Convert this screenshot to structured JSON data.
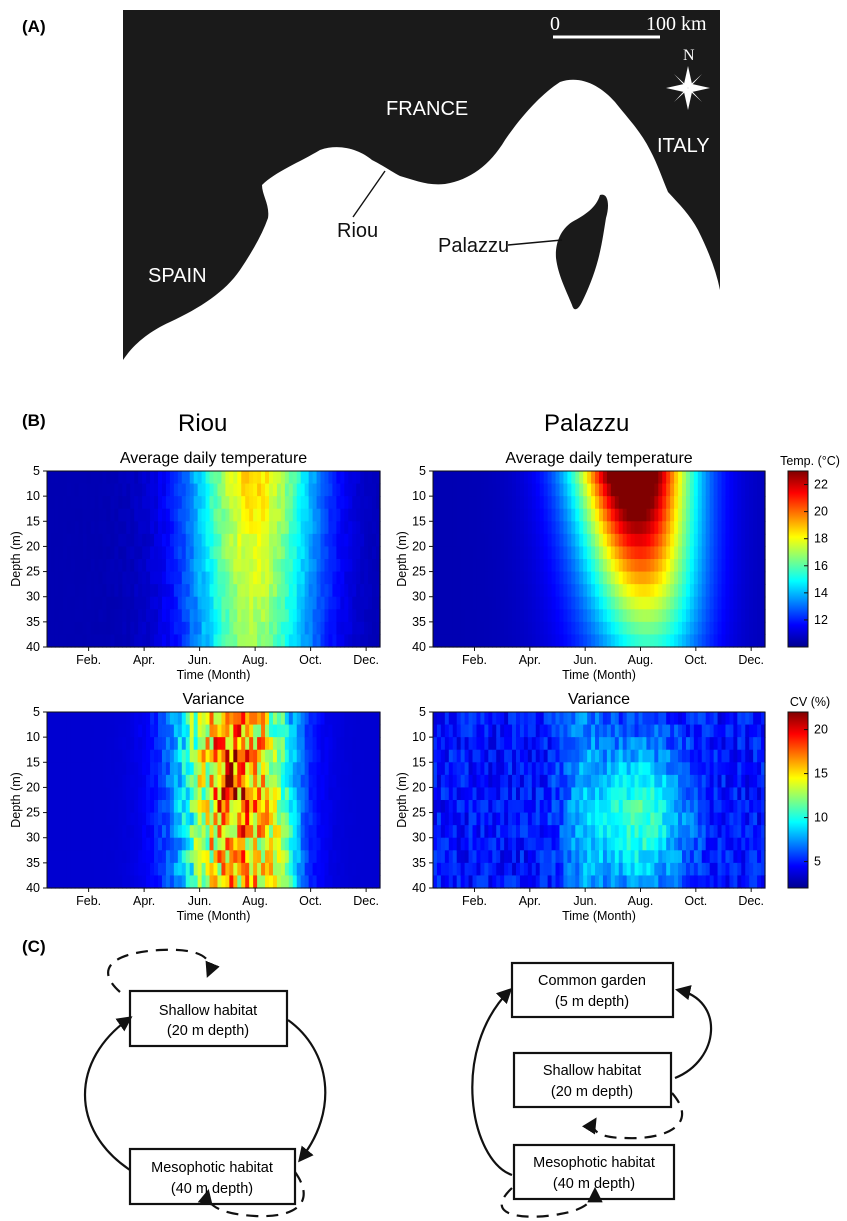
{
  "panels": {
    "a": "(A)",
    "b": "(B)",
    "c": "(C)"
  },
  "map": {
    "countries": {
      "france": "FRANCE",
      "italy": "ITALY",
      "spain": "SPAIN"
    },
    "sites": {
      "riou": "Riou",
      "palazzu": "Palazzu"
    },
    "scale": {
      "start": "0",
      "end": "100 km"
    },
    "north": "N"
  },
  "chart_data": [
    {
      "type": "heatmap",
      "site": "Riou",
      "title": "Average daily temperature",
      "xlabel": "Time (Month)",
      "ylabel": "Depth (m)",
      "x_ticks": [
        "Feb.",
        "Apr.",
        "Jun.",
        "Aug.",
        "Oct.",
        "Dec."
      ],
      "y_ticks": [
        5,
        10,
        15,
        20,
        25,
        30,
        35,
        40
      ],
      "depth_range": [
        5,
        40
      ],
      "peak": {
        "value": 20,
        "months": "Jul.–Sep.",
        "depth": "5–40 m"
      },
      "colorbar": {
        "title": "Temp. (°C)",
        "ticks": [
          12,
          14,
          16,
          18,
          20,
          22
        ],
        "range": [
          10,
          23
        ]
      }
    },
    {
      "type": "heatmap",
      "site": "Palazzu",
      "title": "Average daily temperature",
      "xlabel": "Time (Month)",
      "ylabel": "Depth (m)",
      "x_ticks": [
        "Feb.",
        "Apr.",
        "Jun.",
        "Aug.",
        "Oct.",
        "Dec."
      ],
      "y_ticks": [
        5,
        10,
        15,
        20,
        25,
        30,
        35,
        40
      ],
      "depth_range": [
        5,
        40
      ],
      "peak": {
        "value": 23,
        "months": "Aug.",
        "depth": "5–15 m"
      },
      "colorbar": {
        "title": "Temp. (°C)",
        "ticks": [
          12,
          14,
          16,
          18,
          20,
          22
        ],
        "range": [
          10,
          23
        ]
      }
    },
    {
      "type": "heatmap",
      "site": "Riou",
      "title": "Variance",
      "xlabel": "Time (Month)",
      "ylabel": "Depth (m)",
      "x_ticks": [
        "Feb.",
        "Apr.",
        "Jun.",
        "Aug.",
        "Oct.",
        "Dec."
      ],
      "y_ticks": [
        5,
        10,
        15,
        20,
        25,
        30,
        35,
        40
      ],
      "depth_range": [
        5,
        40
      ],
      "peak": {
        "value": 21,
        "months": "Jul.–Oct.",
        "depth": "5–40 m"
      },
      "colorbar": {
        "title": "CV (%)",
        "ticks": [
          5,
          10,
          15,
          20
        ],
        "range": [
          2,
          22
        ]
      }
    },
    {
      "type": "heatmap",
      "site": "Palazzu",
      "title": "Variance",
      "xlabel": "Time (Month)",
      "ylabel": "Depth (m)",
      "x_ticks": [
        "Feb.",
        "Apr.",
        "Jun.",
        "Aug.",
        "Oct.",
        "Dec."
      ],
      "y_ticks": [
        5,
        10,
        15,
        20,
        25,
        30,
        35,
        40
      ],
      "depth_range": [
        5,
        40
      ],
      "peak": {
        "value": 12,
        "months": "Aug.–Sep.",
        "depth": "20–35 m"
      },
      "colorbar": {
        "title": "CV (%)",
        "ticks": [
          5,
          10,
          15,
          20
        ],
        "range": [
          2,
          22
        ]
      }
    }
  ],
  "diagram": {
    "left": {
      "shallow": [
        "Shallow habitat",
        "(20 m depth)"
      ],
      "meso": [
        "Mesophotic habitat",
        "(40 m depth)"
      ]
    },
    "right": {
      "garden": [
        "Common garden",
        "(5 m depth)"
      ],
      "shallow": [
        "Shallow habitat",
        "(20 m depth)"
      ],
      "meso": [
        "Mesophotic habitat",
        "(40 m depth)"
      ]
    }
  }
}
